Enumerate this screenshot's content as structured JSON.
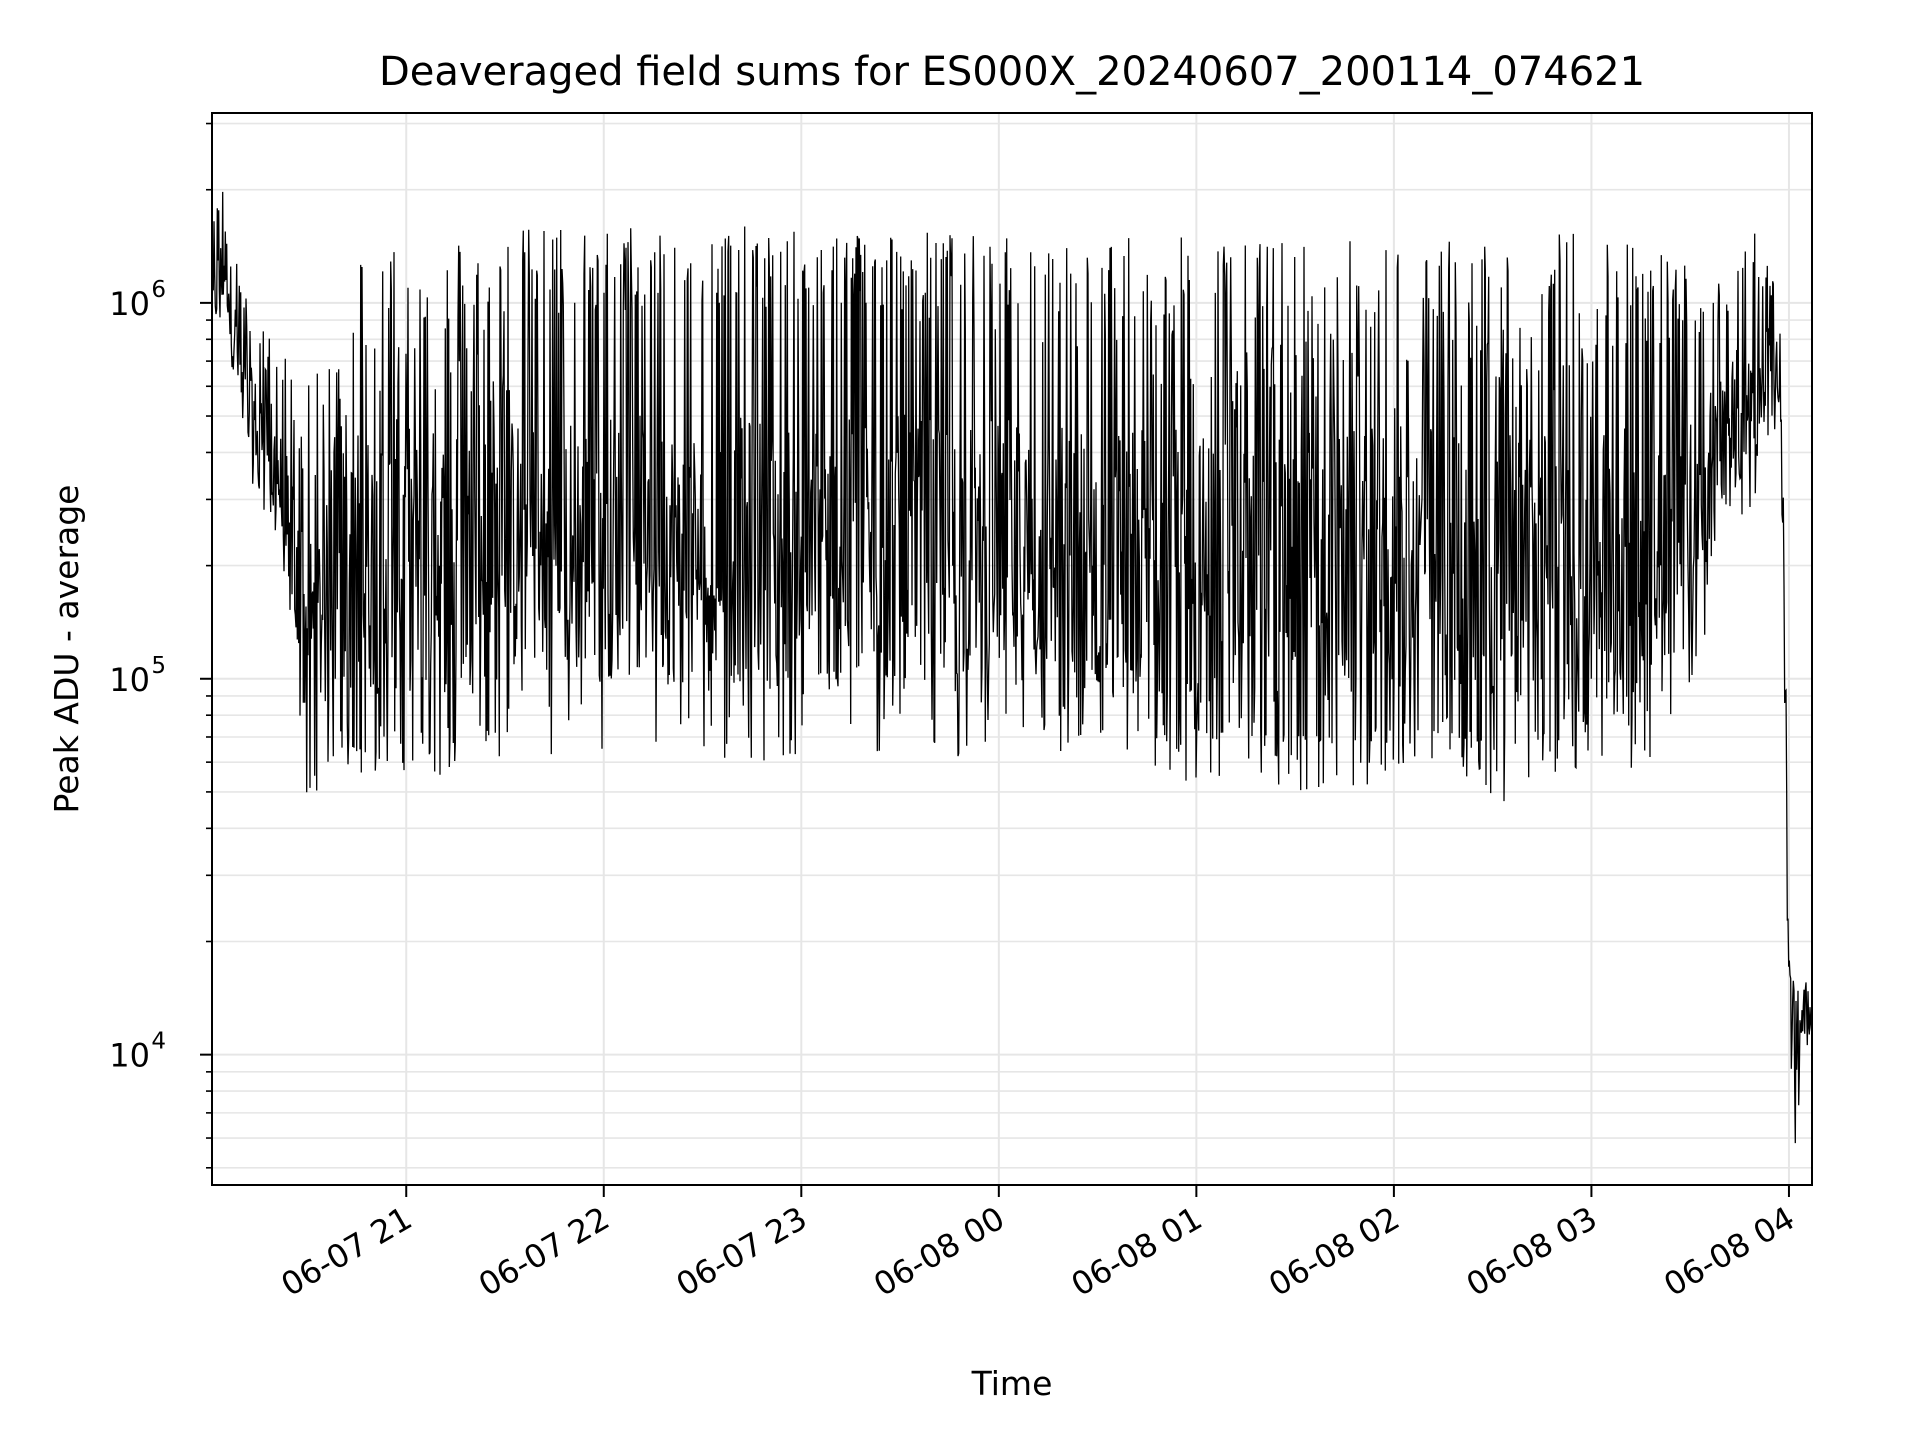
{
  "chart_data": {
    "type": "line",
    "title": "Deaveraged field sums for ES000X_20240607_200114_074621",
    "xlabel": "Time",
    "ylabel": "Peak ADU - average",
    "yscale": "log",
    "ylim": [
      4500,
      3200000
    ],
    "xlim": [
      "2024-06-07 20:01",
      "2024-06-08 04:07"
    ],
    "grid": true,
    "line_color": "#000000",
    "grid_color": "#e6e6e6",
    "x_ticks": [
      {
        "time": "2024-06-07 21:00",
        "label": "06-07 21"
      },
      {
        "time": "2024-06-07 22:00",
        "label": "06-07 22"
      },
      {
        "time": "2024-06-07 23:00",
        "label": "06-07 23"
      },
      {
        "time": "2024-06-08 00:00",
        "label": "06-08 00"
      },
      {
        "time": "2024-06-08 01:00",
        "label": "06-08 01"
      },
      {
        "time": "2024-06-08 02:00",
        "label": "06-08 02"
      },
      {
        "time": "2024-06-08 03:00",
        "label": "06-08 03"
      },
      {
        "time": "2024-06-08 04:00",
        "label": "06-08 04"
      }
    ],
    "y_ticks": [
      {
        "value": 10000,
        "base": "10",
        "exp": "4"
      },
      {
        "value": 100000,
        "base": "10",
        "exp": "5"
      },
      {
        "value": 1000000,
        "base": "10",
        "exp": "6"
      }
    ],
    "series": [
      {
        "x": [
          "2024-06-07 20:01",
          "2024-06-07 20:05",
          "2024-06-07 20:10",
          "2024-06-07 20:15",
          "2024-06-07 20:20",
          "2024-06-07 20:25",
          "2024-06-07 20:30",
          "2024-06-07 20:35",
          "2024-06-07 20:40",
          "2024-06-07 20:45",
          "2024-06-07 20:50",
          "2024-06-07 20:55",
          "2024-06-07 21:00",
          "2024-06-07 21:10",
          "2024-06-07 21:20",
          "2024-06-07 21:30",
          "2024-06-07 21:40",
          "2024-06-07 21:50",
          "2024-06-07 22:00",
          "2024-06-07 22:15",
          "2024-06-07 22:30",
          "2024-06-07 22:45",
          "2024-06-07 23:00",
          "2024-06-07 23:15",
          "2024-06-07 23:30",
          "2024-06-07 23:45",
          "2024-06-08 00:00",
          "2024-06-08 00:15",
          "2024-06-08 00:30",
          "2024-06-08 00:45",
          "2024-06-08 01:00",
          "2024-06-08 01:15",
          "2024-06-08 01:30",
          "2024-06-08 01:45",
          "2024-06-08 02:00",
          "2024-06-08 02:15",
          "2024-06-08 02:30",
          "2024-06-08 02:45",
          "2024-06-08 03:00",
          "2024-06-08 03:15",
          "2024-06-08 03:30",
          "2024-06-08 03:40",
          "2024-06-08 03:50",
          "2024-06-08 03:55",
          "2024-06-08 03:58",
          "2024-06-08 04:00",
          "2024-06-08 04:02",
          "2024-06-08 04:04",
          "2024-06-08 04:07"
        ],
        "y": [
          900000,
          1800000,
          650000,
          450000,
          380000,
          320000,
          110000,
          95000,
          90000,
          100000,
          95000,
          90000,
          95000,
          100000,
          95000,
          100000,
          300000,
          400000,
          400000,
          450000,
          500000,
          480000,
          450000,
          420000,
          400000,
          350000,
          300000,
          250000,
          200000,
          150000,
          110000,
          100000,
          95000,
          90000,
          95000,
          100000,
          95000,
          100000,
          150000,
          300000,
          350000,
          500000,
          800000,
          700000,
          300000,
          15000,
          7000,
          13000,
          12000
        ],
        "hi": [
          1600000,
          2300000,
          1100000,
          900000,
          800000,
          700000,
          600000,
          700000,
          900000,
          1500000,
          1500000,
          1600000,
          1600000,
          1500000,
          1600000,
          1600000,
          1600000,
          1650000,
          1600000,
          1650000,
          1600000,
          1600000,
          1550000,
          1600000,
          1600000,
          1550000,
          1500000,
          1500000,
          1500000,
          1500000,
          1500000,
          1500000,
          1500000,
          1500000,
          1500000,
          1500000,
          1500000,
          1550000,
          1600000,
          1500000,
          1300000,
          1300000,
          1600000,
          1200000,
          800000,
          18000,
          15000,
          16000,
          15000
        ],
        "lo": [
          700000,
          900000,
          400000,
          300000,
          250000,
          100000,
          45000,
          55000,
          60000,
          55000,
          55000,
          55000,
          55000,
          55000,
          55000,
          60000,
          65000,
          60000,
          62000,
          60000,
          55000,
          60000,
          60000,
          55000,
          60000,
          60000,
          62000,
          60000,
          55000,
          58000,
          50000,
          55000,
          50000,
          50000,
          55000,
          60000,
          45000,
          55000,
          58000,
          55000,
          90000,
          200000,
          300000,
          500000,
          250000,
          10000,
          5500,
          10000,
          11000
        ]
      }
    ]
  }
}
